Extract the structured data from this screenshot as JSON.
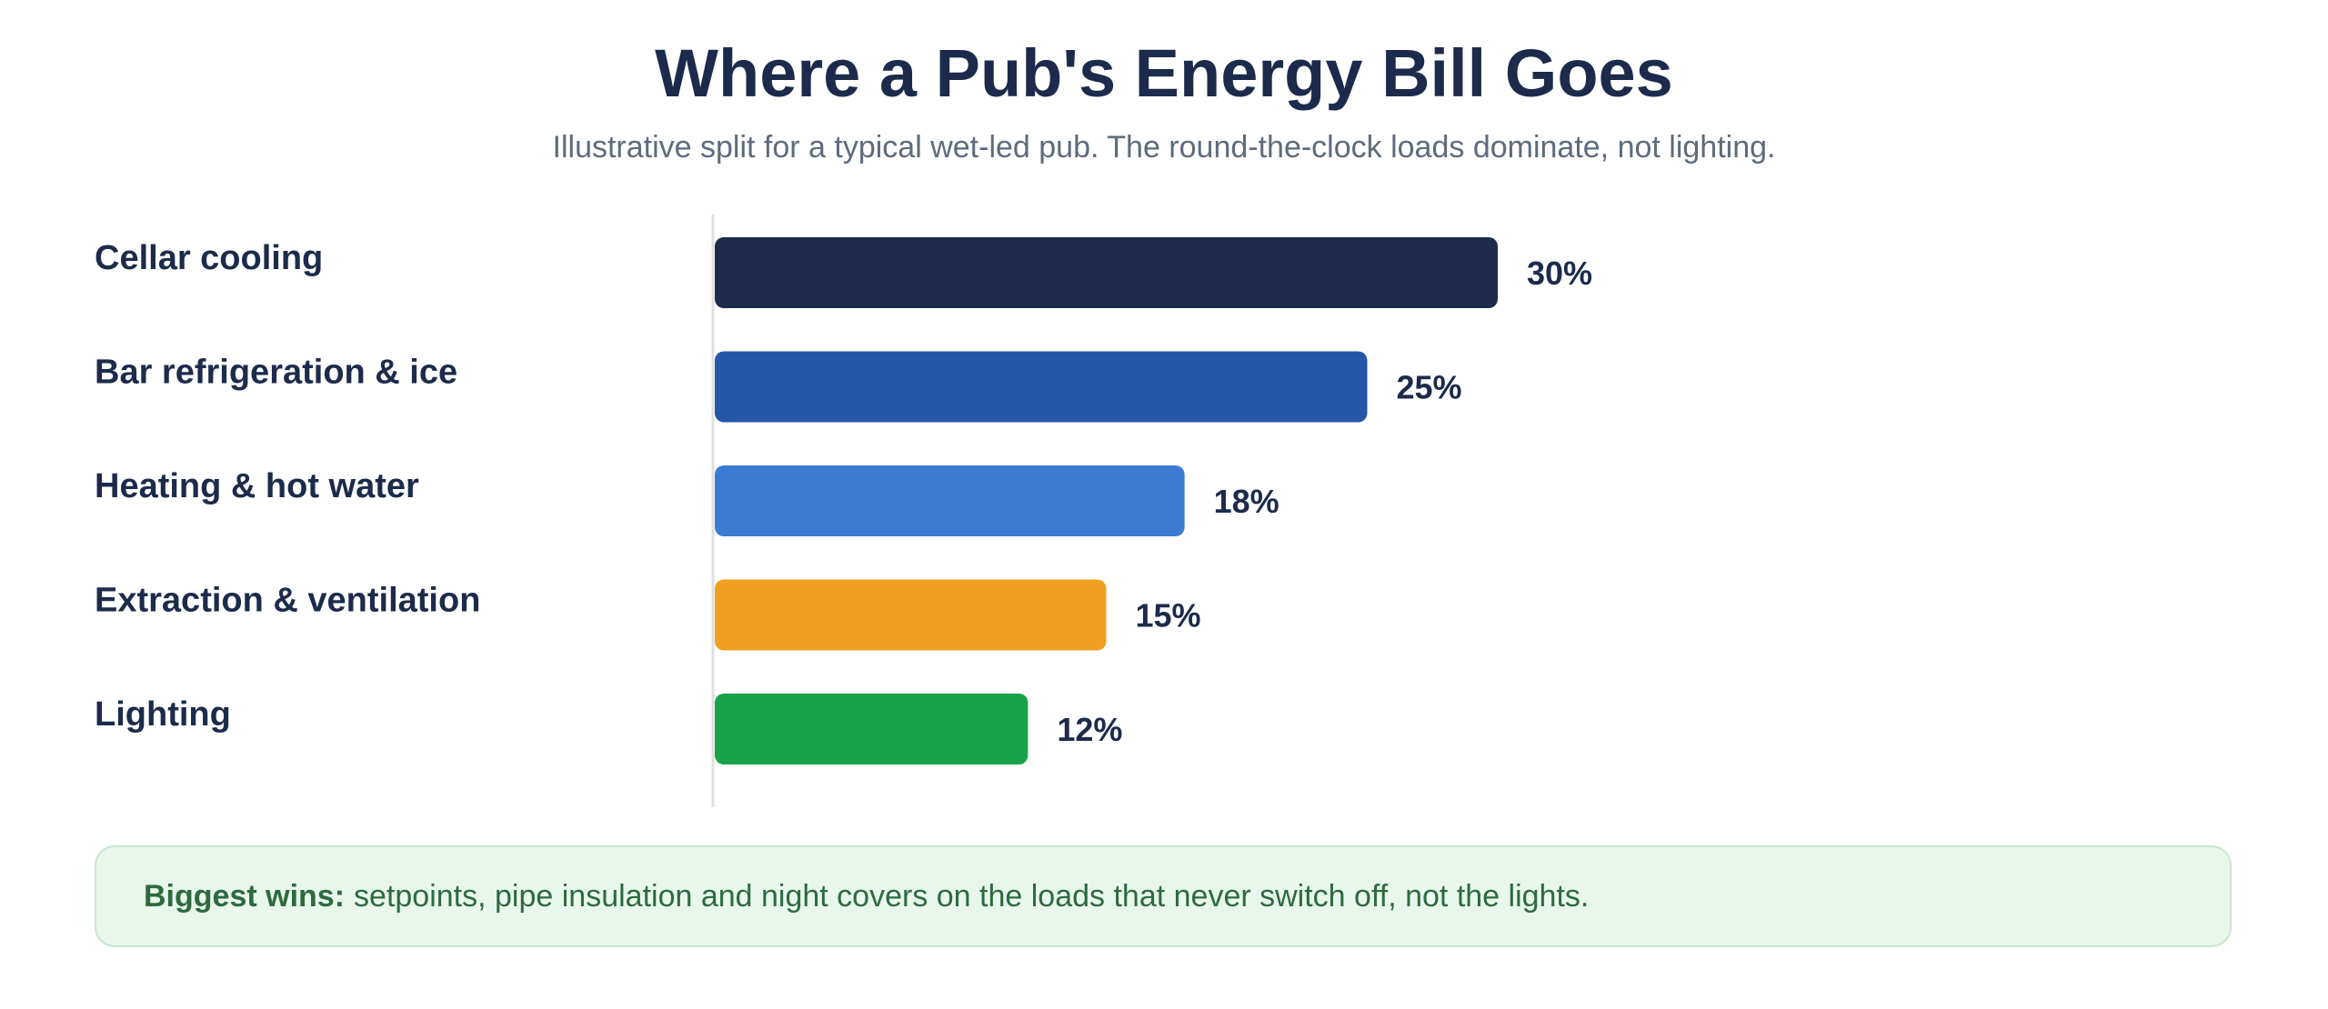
{
  "chart_data": {
    "type": "bar",
    "orientation": "horizontal",
    "title": "Where a Pub's Energy Bill Goes",
    "subtitle": "Illustrative split for a typical wet-led pub. The round-the-clock loads dominate, not lighting.",
    "categories": [
      "Cellar cooling",
      "Bar refrigeration & ice",
      "Heating & hot water",
      "Extraction & ventilation",
      "Lighting"
    ],
    "values": [
      30,
      25,
      18,
      15,
      12
    ],
    "value_labels": [
      "30%",
      "25%",
      "18%",
      "15%",
      "12%"
    ],
    "colors": [
      "#1c2b4b",
      "#2557a7",
      "#3b7bd4",
      "#f0a020",
      "#18a34a"
    ],
    "xlim": [
      0,
      100
    ],
    "grid": false,
    "legend": "none"
  },
  "callout": {
    "lead": "Biggest wins:",
    "text": "setpoints, pipe insulation and night covers on the loads that never switch off, not the lights."
  }
}
